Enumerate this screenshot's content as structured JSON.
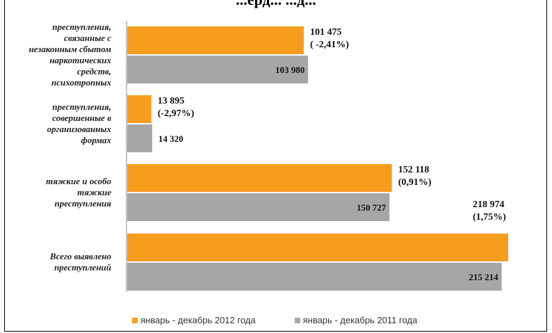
{
  "header": {
    "title_fragment": "...ерд... ...д..."
  },
  "colors": {
    "series_2012": "#f79d1e",
    "series_2011": "#a6a6a6",
    "axis": "#888888"
  },
  "chart_data": {
    "type": "bar",
    "orientation": "horizontal",
    "categories": [
      [
        "преступления,",
        "связанные с",
        "незаконным сбытом",
        "наркотических",
        "средств,",
        "психотропных"
      ],
      [
        "преступления,",
        "совершенные в",
        "организованных",
        "формах"
      ],
      [
        "тяжкие и особо",
        "тяжкие",
        "преступления"
      ],
      [
        "Всего выявлено",
        "преступлений"
      ]
    ],
    "series": [
      {
        "name": "январь - декабрь 2012 года",
        "values": [
          101475,
          13895,
          152118,
          218974
        ],
        "labels": [
          "101 475",
          "13 895",
          "152 118",
          "218 974"
        ],
        "changes": [
          "( -2,41%)",
          "(-2,97%)",
          "(0,91%)",
          "(1,75%)"
        ]
      },
      {
        "name": "январь - декабрь  2011 года",
        "values": [
          103980,
          14320,
          150727,
          215214
        ],
        "labels": [
          "103 980",
          "14 320",
          "150 727",
          "215 214"
        ]
      }
    ],
    "legend_position": "bottom",
    "grid": false
  }
}
